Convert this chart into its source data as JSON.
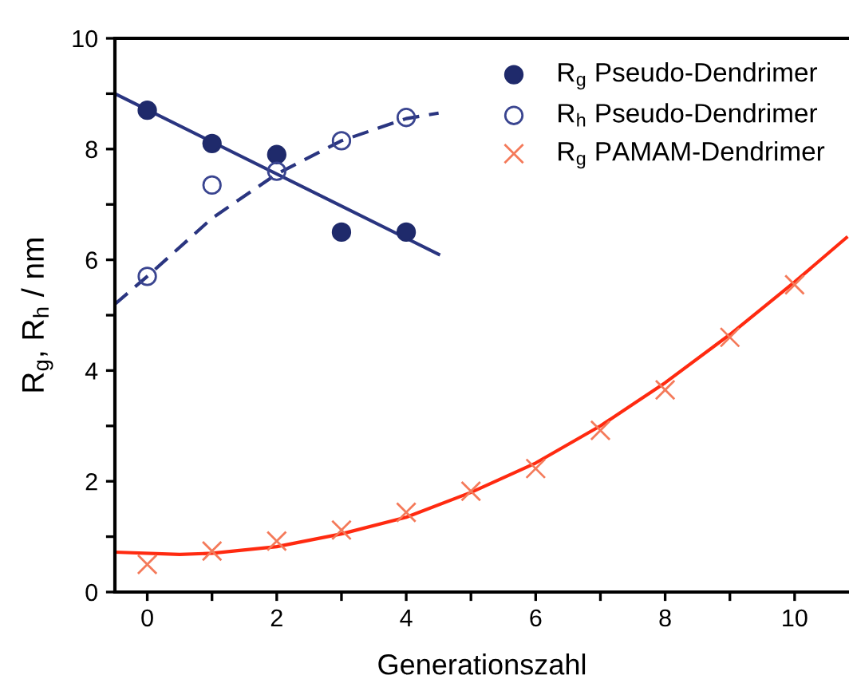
{
  "chart_data": {
    "type": "scatter",
    "xlabel": "Generationszahl",
    "ylabel": "R$_{g}$, R$_{h}$ / nm",
    "xlim": [
      -0.5,
      10.84
    ],
    "ylim": [
      0,
      10
    ],
    "xticks": [
      0,
      {
        "value": 1,
        "label": null
      },
      2,
      {
        "value": 3,
        "label": null
      },
      4,
      {
        "value": 5,
        "label": null
      },
      6,
      {
        "value": 7,
        "label": null
      },
      8,
      {
        "value": 9,
        "label": null
      },
      10
    ],
    "yticks": [
      0,
      {
        "value": 1,
        "label": null
      },
      2,
      {
        "value": 3,
        "label": null
      },
      4,
      {
        "value": 5,
        "label": null
      },
      6,
      {
        "value": 7,
        "label": null
      },
      8,
      {
        "value": 9,
        "label": null
      },
      10
    ],
    "grid": false,
    "legend": "top right",
    "series": [
      {
        "name": "R$_{g}$ Pseudo-Dendrimer",
        "marker": "circle",
        "color": "#1f2a6b",
        "x": [
          0,
          1,
          2,
          3,
          4
        ],
        "values": [
          8.7,
          8.1,
          7.9,
          6.5,
          6.5
        ]
      },
      {
        "name": "R$_{h}$ Pseudo-Dendrimer",
        "marker": "circle",
        "color": "#3a4590",
        "x": [
          0,
          1,
          2,
          3,
          4
        ],
        "values": [
          5.7,
          7.35,
          7.6,
          8.15,
          8.57
        ]
      },
      {
        "name": "R$_{g}$ PAMAM-Dendrimer",
        "marker": "cross",
        "color": "#f47a5a",
        "x": [
          0,
          1,
          2,
          3,
          4,
          5,
          6,
          7,
          8,
          9,
          10
        ],
        "values": [
          0.5,
          0.74,
          0.92,
          1.12,
          1.44,
          1.82,
          2.23,
          2.92,
          3.65,
          4.6,
          5.55
        ]
      },
      {
        "type": "line",
        "line_style": "solid",
        "color": "#2a3580",
        "x": [
          -0.5,
          4.5
        ],
        "values": [
          9.0,
          6.1
        ]
      },
      {
        "type": "line",
        "line_style": "dashed",
        "color": "#2a3580",
        "x": [
          -0.5,
          0,
          1,
          2,
          3,
          4,
          4.5
        ],
        "values": [
          5.2,
          5.7,
          6.75,
          7.55,
          8.15,
          8.55,
          8.65
        ]
      },
      {
        "type": "line",
        "line_style": "solid",
        "color": "#ff2a10",
        "x": [
          -0.5,
          0.5,
          1,
          2,
          3,
          4,
          5,
          6,
          7,
          8,
          9,
          10,
          10.8
        ],
        "values": [
          0.72,
          0.68,
          0.7,
          0.82,
          1.05,
          1.35,
          1.8,
          2.33,
          3.0,
          3.78,
          4.65,
          5.6,
          6.4
        ]
      }
    ]
  }
}
